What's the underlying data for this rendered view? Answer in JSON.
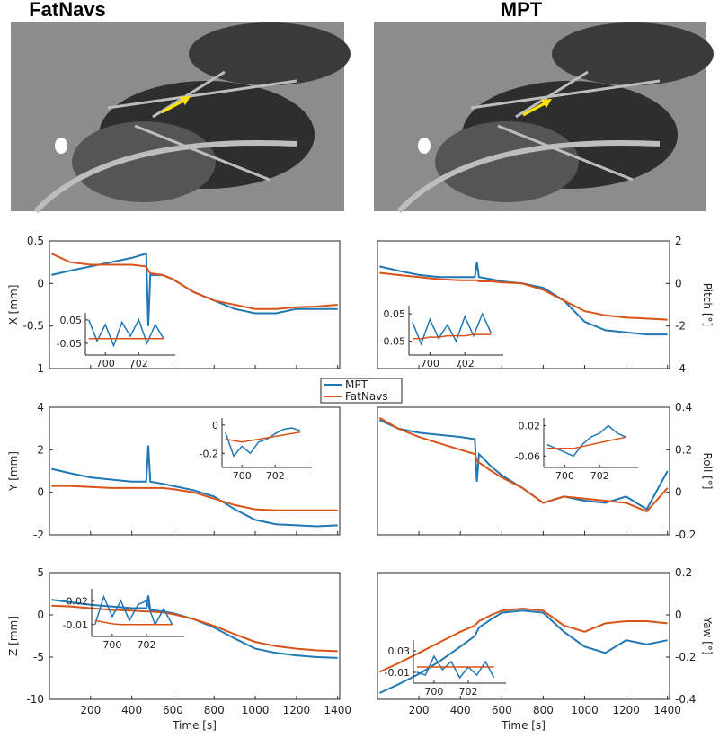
{
  "images": [
    {
      "title": "FatNavs"
    },
    {
      "title": "MPT"
    }
  ],
  "chart_data": [
    {
      "type": "line",
      "ylabel": "X [mm]",
      "yaxis": "left",
      "xlim": [
        0,
        1410
      ],
      "xticks": [
        200,
        400,
        600,
        800,
        1000,
        1200,
        1400
      ],
      "ylim": [
        -1,
        0.5
      ],
      "yticks": [
        -1,
        -0.5,
        0,
        0.5
      ],
      "x": [
        10,
        100,
        200,
        300,
        400,
        470,
        480,
        490,
        550,
        600,
        700,
        800,
        900,
        1000,
        1100,
        1200,
        1300,
        1400
      ],
      "series": [
        {
          "name": "MPT",
          "color": "#1f77b4",
          "values": [
            0.1,
            0.15,
            0.2,
            0.25,
            0.3,
            0.35,
            -0.5,
            0.1,
            0.1,
            0.05,
            -0.1,
            -0.2,
            -0.3,
            -0.35,
            -0.35,
            -0.3,
            -0.3,
            -0.3
          ]
        },
        {
          "name": "FatNavs",
          "color": "#d95319",
          "values": [
            0.35,
            0.25,
            0.22,
            0.22,
            0.22,
            0.2,
            0.15,
            0.12,
            0.1,
            0.05,
            -0.1,
            -0.2,
            -0.25,
            -0.3,
            -0.3,
            -0.28,
            -0.27,
            -0.25
          ]
        }
      ],
      "inset": {
        "xlim": [
          698.8,
          704.2
        ],
        "xticks": [
          700,
          702
        ],
        "ylim": [
          -0.1,
          0.08
        ],
        "yticks": [
          0.05,
          -0.05
        ],
        "x": [
          699,
          699.5,
          700,
          700.5,
          701,
          701.5,
          702,
          702.5,
          703,
          703.5
        ],
        "series": [
          {
            "values": [
              0.05,
              -0.04,
              0.03,
              -0.06,
              0.04,
              -0.02,
              0.05,
              -0.05,
              0.03,
              -0.03
            ]
          },
          {
            "values": [
              -0.03,
              -0.03,
              -0.03,
              -0.03,
              -0.03,
              -0.03,
              -0.03,
              -0.03,
              -0.03,
              -0.03
            ]
          }
        ]
      }
    },
    {
      "type": "line",
      "ylabel": "Pitch [°]",
      "yaxis": "right",
      "xlim": [
        0,
        1410
      ],
      "xticks": [
        200,
        400,
        600,
        800,
        1000,
        1200,
        1400
      ],
      "ylim": [
        -4,
        2
      ],
      "yticks": [
        -4,
        -2,
        0,
        2
      ],
      "x": [
        10,
        100,
        200,
        300,
        400,
        470,
        480,
        490,
        550,
        600,
        700,
        800,
        900,
        1000,
        1100,
        1200,
        1300,
        1400
      ],
      "series": [
        {
          "color": "#1f77b4",
          "values": [
            0.8,
            0.6,
            0.4,
            0.3,
            0.3,
            0.3,
            1,
            0.3,
            0.2,
            0.1,
            0,
            -0.2,
            -0.8,
            -1.8,
            -2.2,
            -2.3,
            -2.4,
            -2.4
          ]
        },
        {
          "color": "#d95319",
          "values": [
            0.5,
            0.4,
            0.3,
            0.2,
            0.15,
            0.15,
            0.15,
            0.1,
            0.1,
            0.05,
            0,
            -0.3,
            -0.8,
            -1.3,
            -1.5,
            -1.6,
            -1.65,
            -1.7
          ]
        }
      ],
      "inset": {
        "xlim": [
          698.8,
          704.2
        ],
        "xticks": [
          700,
          702
        ],
        "ylim": [
          -0.1,
          0.08
        ],
        "yticks": [
          0.05,
          -0.05
        ],
        "x": [
          699,
          699.5,
          700,
          700.5,
          701,
          701.5,
          702,
          702.5,
          703,
          703.5
        ],
        "series": [
          {
            "values": [
              0.02,
              -0.06,
              0.03,
              -0.04,
              0.01,
              -0.05,
              0.04,
              -0.03,
              0.05,
              -0.02
            ]
          },
          {
            "values": [
              -0.04,
              -0.04,
              -0.035,
              -0.035,
              -0.03,
              -0.03,
              -0.03,
              -0.025,
              -0.025,
              -0.025
            ]
          }
        ]
      }
    },
    {
      "type": "line",
      "ylabel": "Y [mm]",
      "yaxis": "left",
      "xlim": [
        0,
        1410
      ],
      "xticks": [
        200,
        400,
        600,
        800,
        1000,
        1200,
        1400
      ],
      "ylim": [
        -2,
        4
      ],
      "yticks": [
        -2,
        0,
        2,
        4
      ],
      "x": [
        10,
        100,
        200,
        300,
        400,
        470,
        480,
        490,
        550,
        600,
        700,
        800,
        900,
        1000,
        1100,
        1200,
        1300,
        1400
      ],
      "series": [
        {
          "color": "#1f77b4",
          "values": [
            1.1,
            0.9,
            0.7,
            0.6,
            0.5,
            0.5,
            2.2,
            0.5,
            0.4,
            0.3,
            0.1,
            -0.2,
            -0.8,
            -1.3,
            -1.5,
            -1.55,
            -1.6,
            -1.55
          ]
        },
        {
          "color": "#d95319",
          "values": [
            0.3,
            0.3,
            0.25,
            0.2,
            0.2,
            0.2,
            0.2,
            0.2,
            0.2,
            0.15,
            0,
            -0.3,
            -0.6,
            -0.8,
            -0.85,
            -0.85,
            -0.85,
            -0.85
          ]
        }
      ],
      "inset": {
        "xlim": [
          698.8,
          704.2
        ],
        "xticks": [
          700,
          702
        ],
        "ylim": [
          -0.3,
          0.05
        ],
        "yticks": [
          0,
          -0.2
        ],
        "x": [
          699,
          699.5,
          700,
          700.5,
          701,
          701.5,
          702,
          702.5,
          703,
          703.5
        ],
        "series": [
          {
            "values": [
              -0.05,
              -0.22,
              -0.15,
              -0.2,
              -0.12,
              -0.1,
              -0.06,
              -0.03,
              -0.02,
              -0.04
            ]
          },
          {
            "values": [
              -0.1,
              -0.11,
              -0.12,
              -0.11,
              -0.1,
              -0.09,
              -0.08,
              -0.07,
              -0.06,
              -0.05
            ]
          }
        ]
      }
    },
    {
      "type": "line",
      "ylabel": "Roll [°]",
      "yaxis": "right",
      "xlim": [
        0,
        1410
      ],
      "xticks": [
        200,
        400,
        600,
        800,
        1000,
        1200,
        1400
      ],
      "ylim": [
        -0.2,
        0.4
      ],
      "yticks": [
        -0.2,
        0,
        0.2,
        0.4
      ],
      "x": [
        10,
        100,
        200,
        300,
        400,
        470,
        480,
        490,
        550,
        600,
        700,
        800,
        900,
        1000,
        1100,
        1200,
        1300,
        1400
      ],
      "series": [
        {
          "color": "#1f77b4",
          "values": [
            0.34,
            0.3,
            0.28,
            0.27,
            0.26,
            0.25,
            0.05,
            0.18,
            0.12,
            0.08,
            0.02,
            -0.05,
            -0.02,
            -0.04,
            -0.05,
            -0.02,
            -0.08,
            0.1
          ]
        },
        {
          "color": "#d95319",
          "values": [
            0.35,
            0.3,
            0.26,
            0.23,
            0.2,
            0.18,
            0.15,
            0.14,
            0.1,
            0.07,
            0.02,
            -0.05,
            -0.02,
            -0.03,
            -0.04,
            -0.05,
            -0.09,
            0.02
          ]
        }
      ],
      "inset": {
        "xlim": [
          698.8,
          704.2
        ],
        "xticks": [
          700,
          702
        ],
        "ylim": [
          -0.09,
          0.04
        ],
        "yticks": [
          0.02,
          -0.06
        ],
        "x": [
          699,
          699.5,
          700,
          700.5,
          701,
          701.5,
          702,
          702.5,
          703,
          703.5
        ],
        "series": [
          {
            "values": [
              -0.03,
              -0.04,
              -0.05,
              -0.06,
              -0.03,
              -0.01,
              0.0,
              0.02,
              0.0,
              -0.01
            ]
          },
          {
            "values": [
              -0.04,
              -0.04,
              -0.04,
              -0.04,
              -0.035,
              -0.03,
              -0.025,
              -0.02,
              -0.015,
              -0.01
            ]
          }
        ]
      }
    },
    {
      "type": "line",
      "ylabel": "Z [mm]",
      "yaxis": "left",
      "xlabel": "Time [s]",
      "xlim": [
        0,
        1410
      ],
      "xticks": [
        200,
        400,
        600,
        800,
        1000,
        1200,
        1400
      ],
      "ylim": [
        -10,
        5
      ],
      "yticks": [
        -10,
        -5,
        0,
        5
      ],
      "x": [
        10,
        100,
        200,
        300,
        400,
        470,
        480,
        490,
        550,
        600,
        700,
        800,
        900,
        1000,
        1100,
        1200,
        1300,
        1400
      ],
      "series": [
        {
          "color": "#1f77b4",
          "values": [
            1.8,
            1.5,
            1.2,
            1,
            0.8,
            0.8,
            2.3,
            0.6,
            0.4,
            0.2,
            -0.5,
            -1.5,
            -2.8,
            -4,
            -4.5,
            -4.8,
            -5,
            -5.1
          ]
        },
        {
          "color": "#d95319",
          "values": [
            1.1,
            1,
            0.8,
            0.6,
            0.5,
            0.4,
            0.4,
            0.4,
            0.3,
            0.1,
            -0.5,
            -1.3,
            -2.3,
            -3.2,
            -3.7,
            -4,
            -4.2,
            -4.3
          ]
        }
      ],
      "inset": {
        "xlim": [
          698.8,
          704.2
        ],
        "xticks": [
          700,
          702
        ],
        "ylim": [
          -0.025,
          0.035
        ],
        "yticks": [
          0.02,
          -0.01
        ],
        "x": [
          699,
          699.5,
          700,
          700.5,
          701,
          701.5,
          702,
          702.5,
          703,
          703.5
        ],
        "series": [
          {
            "values": [
              -0.01,
              0.025,
              0.0,
              0.02,
              -0.005,
              0.015,
              0.02,
              -0.01,
              0.01,
              -0.01
            ]
          },
          {
            "values": [
              -0.005,
              -0.007,
              -0.009,
              -0.01,
              -0.01,
              -0.01,
              -0.01,
              -0.01,
              -0.01,
              -0.01
            ]
          }
        ]
      }
    },
    {
      "type": "line",
      "ylabel": "Yaw [°]",
      "yaxis": "right",
      "xlabel": "Time [s]",
      "xlim": [
        0,
        1410
      ],
      "xticks": [
        200,
        400,
        600,
        800,
        1000,
        1200,
        1400
      ],
      "ylim": [
        -0.4,
        0.2
      ],
      "yticks": [
        -0.4,
        -0.2,
        0,
        0.2
      ],
      "x": [
        10,
        100,
        200,
        300,
        400,
        470,
        480,
        490,
        550,
        600,
        700,
        800,
        900,
        1000,
        1100,
        1200,
        1300,
        1400
      ],
      "series": [
        {
          "color": "#1f77b4",
          "values": [
            -0.37,
            -0.33,
            -0.28,
            -0.22,
            -0.15,
            -0.1,
            -0.08,
            -0.06,
            -0.02,
            0.01,
            0.02,
            0.01,
            -0.08,
            -0.15,
            -0.18,
            -0.12,
            -0.14,
            -0.12
          ]
        },
        {
          "color": "#d95319",
          "values": [
            -0.27,
            -0.23,
            -0.18,
            -0.13,
            -0.08,
            -0.05,
            -0.04,
            -0.03,
            0,
            0.02,
            0.03,
            0.02,
            -0.05,
            -0.08,
            -0.04,
            -0.03,
            -0.03,
            -0.04
          ]
        }
      ],
      "inset": {
        "xlim": [
          698.8,
          704.2
        ],
        "xticks": [
          700,
          702
        ],
        "ylim": [
          -0.03,
          0.05
        ],
        "yticks": [
          0.03,
          -0.01
        ],
        "x": [
          699,
          699.5,
          700,
          700.5,
          701,
          701.5,
          702,
          702.5,
          703,
          703.5
        ],
        "series": [
          {
            "values": [
              -0.01,
              -0.015,
              0.02,
              -0.005,
              0.01,
              -0.02,
              0.0,
              -0.015,
              0.01,
              -0.02
            ]
          },
          {
            "values": [
              0.0,
              0.0,
              0.0,
              0.0,
              0.0,
              0.0,
              0.0,
              0.0,
              0.0,
              0.0
            ]
          }
        ]
      }
    }
  ]
}
